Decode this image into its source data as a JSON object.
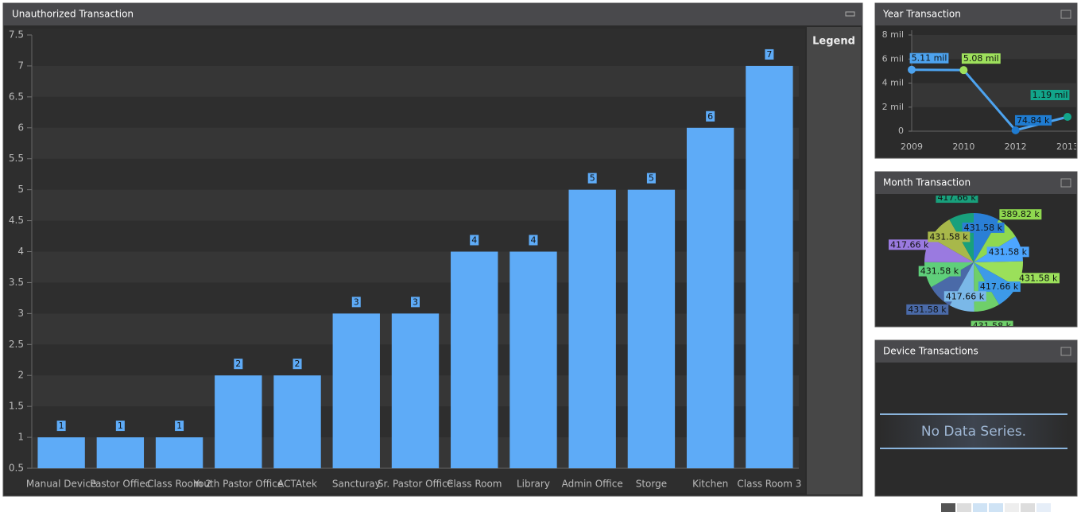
{
  "chart_data": [
    {
      "type": "bar",
      "title": "Unauthorized Transaction",
      "legend_title": "Legend",
      "categories": [
        "Manual Device",
        "Pastor Offiec",
        "Class Room 2",
        "Youth Pastor Office",
        "ACTAtek",
        "Sancturay",
        "Sr. Pastor Office",
        "Class Room",
        "Library",
        "Admin Office",
        "Storge",
        "Kitchen",
        "Class Room 3"
      ],
      "values": [
        1,
        1,
        1,
        2,
        2,
        3,
        3,
        4,
        4,
        5,
        5,
        6,
        7
      ],
      "color": "#5eabf7",
      "ylim": [
        0.5,
        7.5
      ],
      "yticks": [
        0.5,
        1,
        1.5,
        2,
        2.5,
        3,
        3.5,
        4,
        4.5,
        5,
        5.5,
        6,
        6.5,
        7,
        7.5
      ],
      "grid": true
    },
    {
      "type": "line",
      "title": "Year Transaction",
      "categories": [
        "2009",
        "2010",
        "2012",
        "2013"
      ],
      "values": [
        5.11,
        5.08,
        0.07484,
        1.19
      ],
      "value_labels": [
        "5.11 mil",
        "5.08 mil",
        "74.84 k",
        "1.19 mil"
      ],
      "color": "#4da3ef",
      "point_colors": [
        "#4da3ef",
        "#9ee05c",
        "#1f7bd0",
        "#12a58a"
      ],
      "ylim": [
        0,
        8
      ],
      "yticks": [
        {
          "value": 0,
          "label": "0"
        },
        {
          "value": 2,
          "label": "2 mil"
        },
        {
          "value": 4,
          "label": "4 mil"
        },
        {
          "value": 6,
          "label": "6 mil"
        },
        {
          "value": 8,
          "label": "8 mil"
        }
      ],
      "grid": true
    },
    {
      "type": "pie",
      "title": "Month Transaction",
      "values": [
        431.58,
        389.82,
        431.58,
        431.58,
        417.66,
        431.58,
        417.66,
        431.58,
        431.58,
        417.66,
        431.58,
        417.66
      ],
      "value_labels": [
        "431.58 k",
        "389.82 k",
        "431.58 k",
        "431.58 k",
        "417.66 k",
        "431.58 k",
        "417.66 k",
        "431.58 k",
        "431.58 k",
        "417.66 k",
        "431.58 k",
        "417.66 k"
      ],
      "colors": [
        "#2a7fd6",
        "#8fd84f",
        "#4da6ff",
        "#9be05a",
        "#3d9ae8",
        "#6fcf6a",
        "#7ab8e8",
        "#4a6aa8",
        "#5fcf7a",
        "#9a7ae0",
        "#a8b84a",
        "#18a07c"
      ]
    },
    {
      "type": "bar",
      "title": "Device Transactions",
      "message": "No Data Series."
    }
  ]
}
